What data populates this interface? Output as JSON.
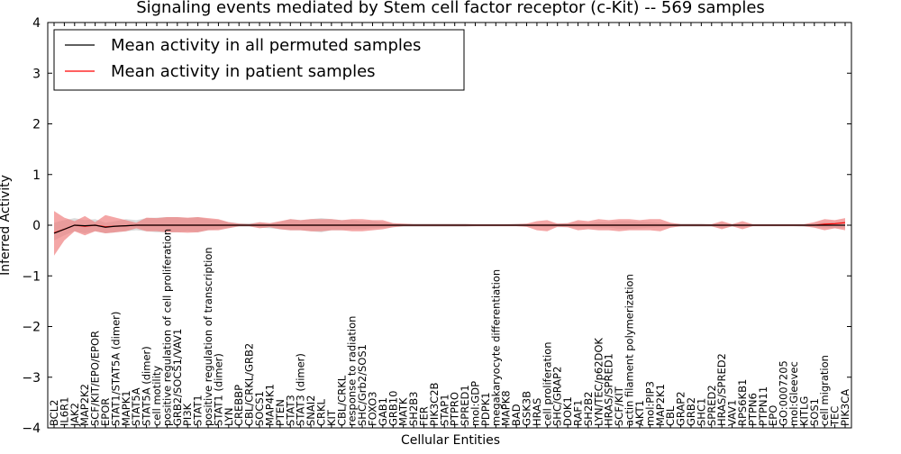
{
  "chart_data": {
    "type": "line",
    "title": "Signaling events mediated by Stem cell factor receptor (c-Kit) -- 569 samples",
    "xlabel": "Cellular Entities",
    "ylabel": "Inferred Activity",
    "ylim": [
      -4,
      4
    ],
    "yticks": [
      4,
      3,
      2,
      1,
      0,
      -1,
      -2,
      -3,
      -4
    ],
    "ytick_labels": [
      "4",
      "3",
      "2",
      "1",
      "0",
      "−1",
      "−2",
      "−3",
      "−4"
    ],
    "legend": {
      "placement": "top-left",
      "entries": [
        {
          "label": "Mean activity in all permuted samples",
          "color": "#000000"
        },
        {
          "label": "Mean activity in patient samples",
          "color": "#ff0000"
        }
      ]
    },
    "categories": [
      "BCL2",
      "IL6R1",
      "JAK2",
      "MAP2K2",
      "SCF/KIT/EPO/EPOR",
      "EPOR",
      "STAT1/STAT5A (dimer)",
      "MAPK1",
      "STAT5A",
      "STAT5A (dimer)",
      "cell motility",
      "positive regulation of cell proliferation",
      "GRB2/SOCS1/VAV1",
      "PI3K",
      "STAT1",
      "positive regulation of transcription",
      "STAT1 (dimer)",
      "LYN",
      "CREBBP",
      "CBL/CRKL/GRB2",
      "SOCS1",
      "MAP4K1",
      "PTEN",
      "STAT3",
      "STAT3 (dimer)",
      "SNAI2",
      "CRKL",
      "KIT",
      "CBL/CRKL",
      "response to radiation",
      "SHC/Grb2/SOS1",
      "FOXO3",
      "GAB1",
      "GRB10",
      "MATK",
      "SH2B3",
      "FER",
      "PIK3C2B",
      "STAP1",
      "PTPRO",
      "SPRED1",
      "mol:GDP",
      "PDPK1",
      "megakaryocyte differentiation",
      "MAPK8",
      "BAD",
      "GSK3B",
      "HRAS",
      "cell proliferation",
      "SHC/GRAP2",
      "DOK1",
      "RAF1",
      "SH2B2",
      "LYN/TEC/p62DOK",
      "HRAS/SPRED1",
      "SCF/KIT",
      "actin filament polymerization",
      "AKT1",
      "mol:PIP3",
      "MAP2K1",
      "CBL",
      "GRAP2",
      "GRB2",
      "SHC1",
      "SPRED2",
      "HRAS/SPRED2",
      "VAV1",
      "RPS6KB1",
      "PTPN6",
      "PTPN11",
      "EPO",
      "GO:0007205",
      "mol:Gleevec",
      "KITLG",
      "SOS1",
      "cell migration",
      "TEC",
      "PIK3CA"
    ],
    "series": [
      {
        "name": "Mean activity in all permuted samples",
        "color": "#000000",
        "values": [
          -0.16,
          -0.08,
          0.0,
          -0.01,
          0.0,
          -0.04,
          -0.02,
          -0.01,
          0.0,
          0.0,
          0.0,
          0.0,
          0.0,
          0.0,
          0.0,
          0.0,
          0.0,
          0.0,
          0.0,
          0.0,
          0.0,
          0.0,
          0.0,
          0.0,
          0.0,
          0.0,
          0.0,
          0.0,
          0.0,
          0.0,
          0.0,
          0.0,
          0.0,
          0.0,
          0.0,
          0.0,
          0.0,
          0.0,
          0.0,
          0.0,
          0.0,
          0.0,
          0.0,
          0.0,
          0.0,
          0.0,
          0.0,
          0.0,
          0.0,
          0.0,
          0.0,
          0.0,
          0.0,
          0.0,
          0.0,
          0.0,
          0.0,
          0.0,
          0.0,
          0.0,
          0.0,
          0.0,
          0.0,
          0.0,
          0.0,
          0.0,
          0.0,
          0.0,
          0.0,
          0.0,
          0.0,
          0.0,
          0.0,
          0.0,
          0.0,
          0.0,
          0.0,
          0.0
        ],
        "upper": [
          0.05,
          0.1,
          0.14,
          0.1,
          0.12,
          0.05,
          0.08,
          0.12,
          0.1,
          0.14,
          0.15,
          0.16,
          0.16,
          0.14,
          0.16,
          0.12,
          0.1,
          0.06,
          0.04,
          0.04,
          0.05,
          0.04,
          0.06,
          0.12,
          0.1,
          0.12,
          0.14,
          0.12,
          0.1,
          0.1,
          0.08,
          0.08,
          0.06,
          0.04,
          0.03,
          0.03,
          0.03,
          0.03,
          0.03,
          0.03,
          0.03,
          0.02,
          0.02,
          0.02,
          0.02,
          0.03,
          0.03,
          0.03,
          0.03,
          0.04,
          0.04,
          0.05,
          0.04,
          0.06,
          0.06,
          0.08,
          0.08,
          0.07,
          0.06,
          0.05,
          0.04,
          0.03,
          0.03,
          0.03,
          0.02,
          0.05,
          0.02,
          0.03,
          0.02,
          0.02,
          0.02,
          0.02,
          0.02,
          0.02,
          0.04,
          0.06,
          0.06,
          0.08
        ],
        "lower": [
          -0.3,
          -0.2,
          -0.12,
          -0.16,
          -0.12,
          -0.16,
          -0.14,
          -0.12,
          -0.1,
          -0.12,
          -0.14,
          -0.14,
          -0.14,
          -0.12,
          -0.14,
          -0.1,
          -0.08,
          -0.05,
          -0.03,
          -0.03,
          -0.05,
          -0.06,
          -0.08,
          -0.1,
          -0.1,
          -0.12,
          -0.14,
          -0.1,
          -0.1,
          -0.08,
          -0.08,
          -0.06,
          -0.05,
          -0.04,
          -0.03,
          -0.03,
          -0.03,
          -0.03,
          -0.03,
          -0.03,
          -0.03,
          -0.02,
          -0.02,
          -0.02,
          -0.02,
          -0.02,
          -0.03,
          -0.03,
          -0.04,
          -0.04,
          -0.04,
          -0.04,
          -0.04,
          -0.05,
          -0.05,
          -0.07,
          -0.07,
          -0.06,
          -0.05,
          -0.04,
          -0.04,
          -0.03,
          -0.03,
          -0.03,
          -0.03,
          -0.06,
          -0.03,
          -0.04,
          -0.02,
          -0.02,
          -0.02,
          -0.02,
          -0.02,
          -0.03,
          -0.04,
          -0.05,
          -0.06,
          -0.06
        ]
      },
      {
        "name": "Mean activity in patient samples",
        "color": "#ff0000",
        "values": [
          -0.15,
          -0.08,
          0.0,
          -0.02,
          0.0,
          -0.03,
          -0.02,
          -0.01,
          0.0,
          0.0,
          0.0,
          0.0,
          0.0,
          0.0,
          0.0,
          0.0,
          0.0,
          0.0,
          0.0,
          0.0,
          0.0,
          0.0,
          0.0,
          0.0,
          0.0,
          0.0,
          0.0,
          0.0,
          0.0,
          0.0,
          0.0,
          0.0,
          0.0,
          0.0,
          0.0,
          0.0,
          0.0,
          0.0,
          0.0,
          0.0,
          0.0,
          0.0,
          0.0,
          0.0,
          0.0,
          0.0,
          0.0,
          0.0,
          0.0,
          0.0,
          0.0,
          0.0,
          0.0,
          0.0,
          0.0,
          0.0,
          0.0,
          0.0,
          0.0,
          0.0,
          0.0,
          0.0,
          0.0,
          0.0,
          0.0,
          0.0,
          0.0,
          0.0,
          0.0,
          0.0,
          0.0,
          0.0,
          0.0,
          0.0,
          0.0,
          0.02,
          0.03,
          0.05
        ],
        "upper": [
          0.28,
          0.15,
          0.08,
          0.18,
          0.06,
          0.2,
          0.15,
          0.1,
          0.05,
          0.15,
          0.14,
          0.16,
          0.16,
          0.15,
          0.16,
          0.14,
          0.12,
          0.06,
          0.03,
          0.02,
          0.06,
          0.04,
          0.08,
          0.12,
          0.1,
          0.12,
          0.12,
          0.12,
          0.1,
          0.12,
          0.12,
          0.1,
          0.1,
          0.04,
          0.03,
          0.02,
          0.02,
          0.02,
          0.02,
          0.02,
          0.02,
          0.02,
          0.02,
          0.02,
          0.02,
          0.02,
          0.03,
          0.08,
          0.1,
          0.03,
          0.04,
          0.1,
          0.08,
          0.12,
          0.1,
          0.12,
          0.12,
          0.1,
          0.12,
          0.12,
          0.05,
          0.02,
          0.02,
          0.02,
          0.02,
          0.08,
          0.02,
          0.08,
          0.02,
          0.02,
          0.02,
          0.02,
          0.02,
          0.02,
          0.06,
          0.12,
          0.1,
          0.14
        ],
        "lower": [
          -0.6,
          -0.3,
          -0.12,
          -0.2,
          -0.12,
          -0.16,
          -0.14,
          -0.12,
          -0.06,
          -0.12,
          -0.12,
          -0.14,
          -0.14,
          -0.15,
          -0.14,
          -0.1,
          -0.1,
          -0.06,
          -0.02,
          -0.02,
          -0.06,
          -0.04,
          -0.08,
          -0.1,
          -0.1,
          -0.12,
          -0.12,
          -0.1,
          -0.1,
          -0.12,
          -0.12,
          -0.1,
          -0.08,
          -0.04,
          -0.02,
          -0.02,
          -0.02,
          -0.02,
          -0.02,
          -0.02,
          -0.02,
          -0.02,
          -0.02,
          -0.02,
          -0.02,
          -0.02,
          -0.03,
          -0.1,
          -0.12,
          -0.03,
          -0.04,
          -0.1,
          -0.08,
          -0.1,
          -0.1,
          -0.12,
          -0.1,
          -0.1,
          -0.1,
          -0.12,
          -0.05,
          -0.02,
          -0.02,
          -0.02,
          -0.02,
          -0.08,
          -0.02,
          -0.08,
          -0.02,
          -0.02,
          -0.02,
          -0.02,
          -0.02,
          -0.02,
          -0.05,
          -0.1,
          -0.06,
          -0.1
        ]
      }
    ]
  }
}
